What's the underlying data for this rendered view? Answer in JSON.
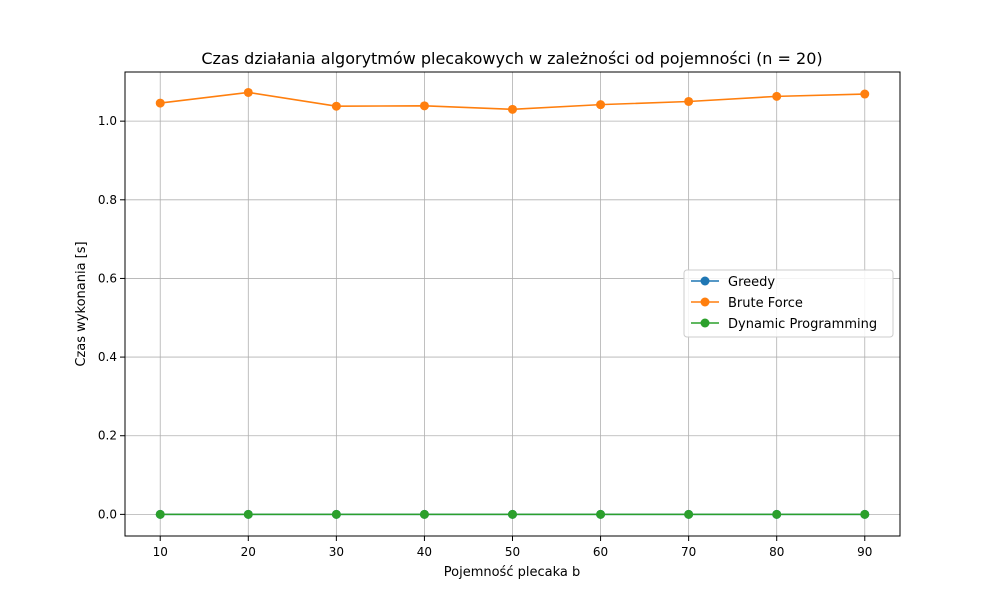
{
  "chart_data": {
    "type": "line",
    "title": "Czas działania algorytmów plecakowych w zależności od pojemności (n = 20)",
    "xlabel": "Pojemność plecaka b",
    "ylabel": "Czas wykonania [s]",
    "x": [
      10,
      20,
      30,
      40,
      50,
      60,
      70,
      80,
      90
    ],
    "x_ticks": [
      "10",
      "20",
      "30",
      "40",
      "50",
      "60",
      "70",
      "80",
      "90"
    ],
    "y_ticks": [
      "0.0",
      "0.2",
      "0.4",
      "0.6",
      "0.8",
      "1.0"
    ],
    "xlim": [
      6,
      94
    ],
    "ylim": [
      -0.055,
      1.125
    ],
    "grid": true,
    "legend_position": "center-right",
    "series": [
      {
        "name": "Greedy",
        "color": "#1f77b4",
        "marker": "circle",
        "values": [
          0.0,
          0.0,
          0.0,
          0.0,
          0.0,
          0.0,
          0.0,
          0.0,
          0.0
        ]
      },
      {
        "name": "Brute Force",
        "color": "#ff7f0e",
        "marker": "circle",
        "values": [
          1.046,
          1.073,
          1.038,
          1.039,
          1.03,
          1.042,
          1.05,
          1.063,
          1.069
        ]
      },
      {
        "name": "Dynamic Programming",
        "color": "#2ca02c",
        "marker": "circle",
        "values": [
          0.0,
          0.0,
          0.0,
          0.0,
          0.0,
          0.0,
          0.0,
          0.0,
          0.0
        ]
      }
    ]
  }
}
